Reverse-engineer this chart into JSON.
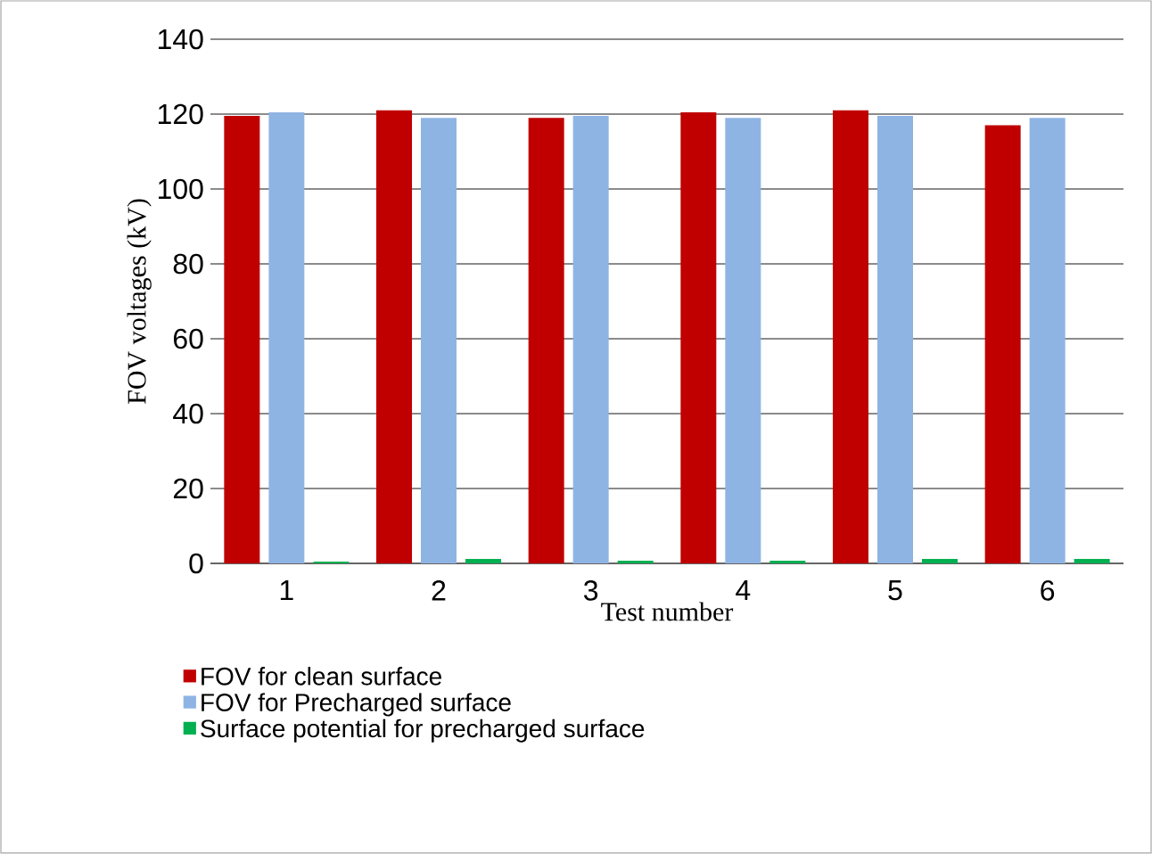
{
  "chart_data": {
    "type": "bar",
    "xlabel": "Test number",
    "ylabel": "FOV voltages (kV)",
    "categories": [
      "1",
      "2",
      "3",
      "4",
      "5",
      "6"
    ],
    "series": [
      {
        "name": "FOV for clean surface",
        "color": "#c00000",
        "values": [
          119.5,
          121,
          119,
          120.5,
          121,
          117
        ]
      },
      {
        "name": "FOV for Precharged surface",
        "color": "#8eb4e3",
        "values": [
          120.5,
          119,
          119.5,
          119,
          119.5,
          119
        ]
      },
      {
        "name": "Surface potential for precharged surface",
        "color": "#00b050",
        "values": [
          0.5,
          1.2,
          0.7,
          0.7,
          1.2,
          1.2
        ]
      }
    ],
    "ylim": [
      0,
      140
    ],
    "yticks": [
      0,
      20,
      40,
      60,
      80,
      100,
      120,
      140
    ],
    "grid": "y",
    "legend": "bottom"
  }
}
